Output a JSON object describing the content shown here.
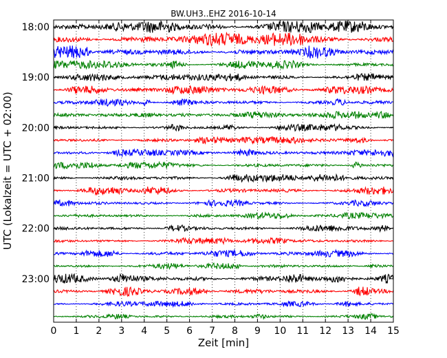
{
  "chart_data": {
    "type": "line",
    "title": "BW.UH3..EHZ 2016-10-14",
    "xlabel": "Zeit  [min]",
    "ylabel": "UTC (Lokalzeit = UTC + 02:00)",
    "xlim": [
      0,
      15
    ],
    "x_ticks": [
      "0",
      "1",
      "2",
      "3",
      "4",
      "5",
      "6",
      "7",
      "8",
      "9",
      "10",
      "11",
      "12",
      "13",
      "14",
      "15"
    ],
    "y_ticks": [
      "18:00",
      "19:00",
      "20:00",
      "21:00",
      "22:00",
      "23:00"
    ],
    "grid": "vertical dotted",
    "line_colors": [
      "#000000",
      "#ff0000",
      "#0000ff",
      "#008000"
    ],
    "rows": [
      {
        "start": "18:00",
        "amplitude": 0.9
      },
      {
        "start": "18:15",
        "amplitude": 1.0
      },
      {
        "start": "18:30",
        "amplitude": 0.95
      },
      {
        "start": "18:45",
        "amplitude": 0.6
      },
      {
        "start": "19:00",
        "amplitude": 0.55
      },
      {
        "start": "19:15",
        "amplitude": 0.6
      },
      {
        "start": "19:30",
        "amplitude": 0.55
      },
      {
        "start": "19:45",
        "amplitude": 0.55
      },
      {
        "start": "20:00",
        "amplitude": 0.5
      },
      {
        "start": "20:15",
        "amplitude": 0.5
      },
      {
        "start": "20:30",
        "amplitude": 0.5
      },
      {
        "start": "20:45",
        "amplitude": 0.5
      },
      {
        "start": "21:00",
        "amplitude": 0.55
      },
      {
        "start": "21:15",
        "amplitude": 0.6
      },
      {
        "start": "21:30",
        "amplitude": 0.45
      },
      {
        "start": "21:45",
        "amplitude": 0.45
      },
      {
        "start": "22:00",
        "amplitude": 0.5
      },
      {
        "start": "22:15",
        "amplitude": 0.45
      },
      {
        "start": "22:30",
        "amplitude": 0.5
      },
      {
        "start": "22:45",
        "amplitude": 0.45
      },
      {
        "start": "23:00",
        "amplitude": 0.75
      },
      {
        "start": "23:15",
        "amplitude": 0.7
      },
      {
        "start": "23:30",
        "amplitude": 0.4
      },
      {
        "start": "23:45",
        "amplitude": 0.45
      }
    ]
  }
}
